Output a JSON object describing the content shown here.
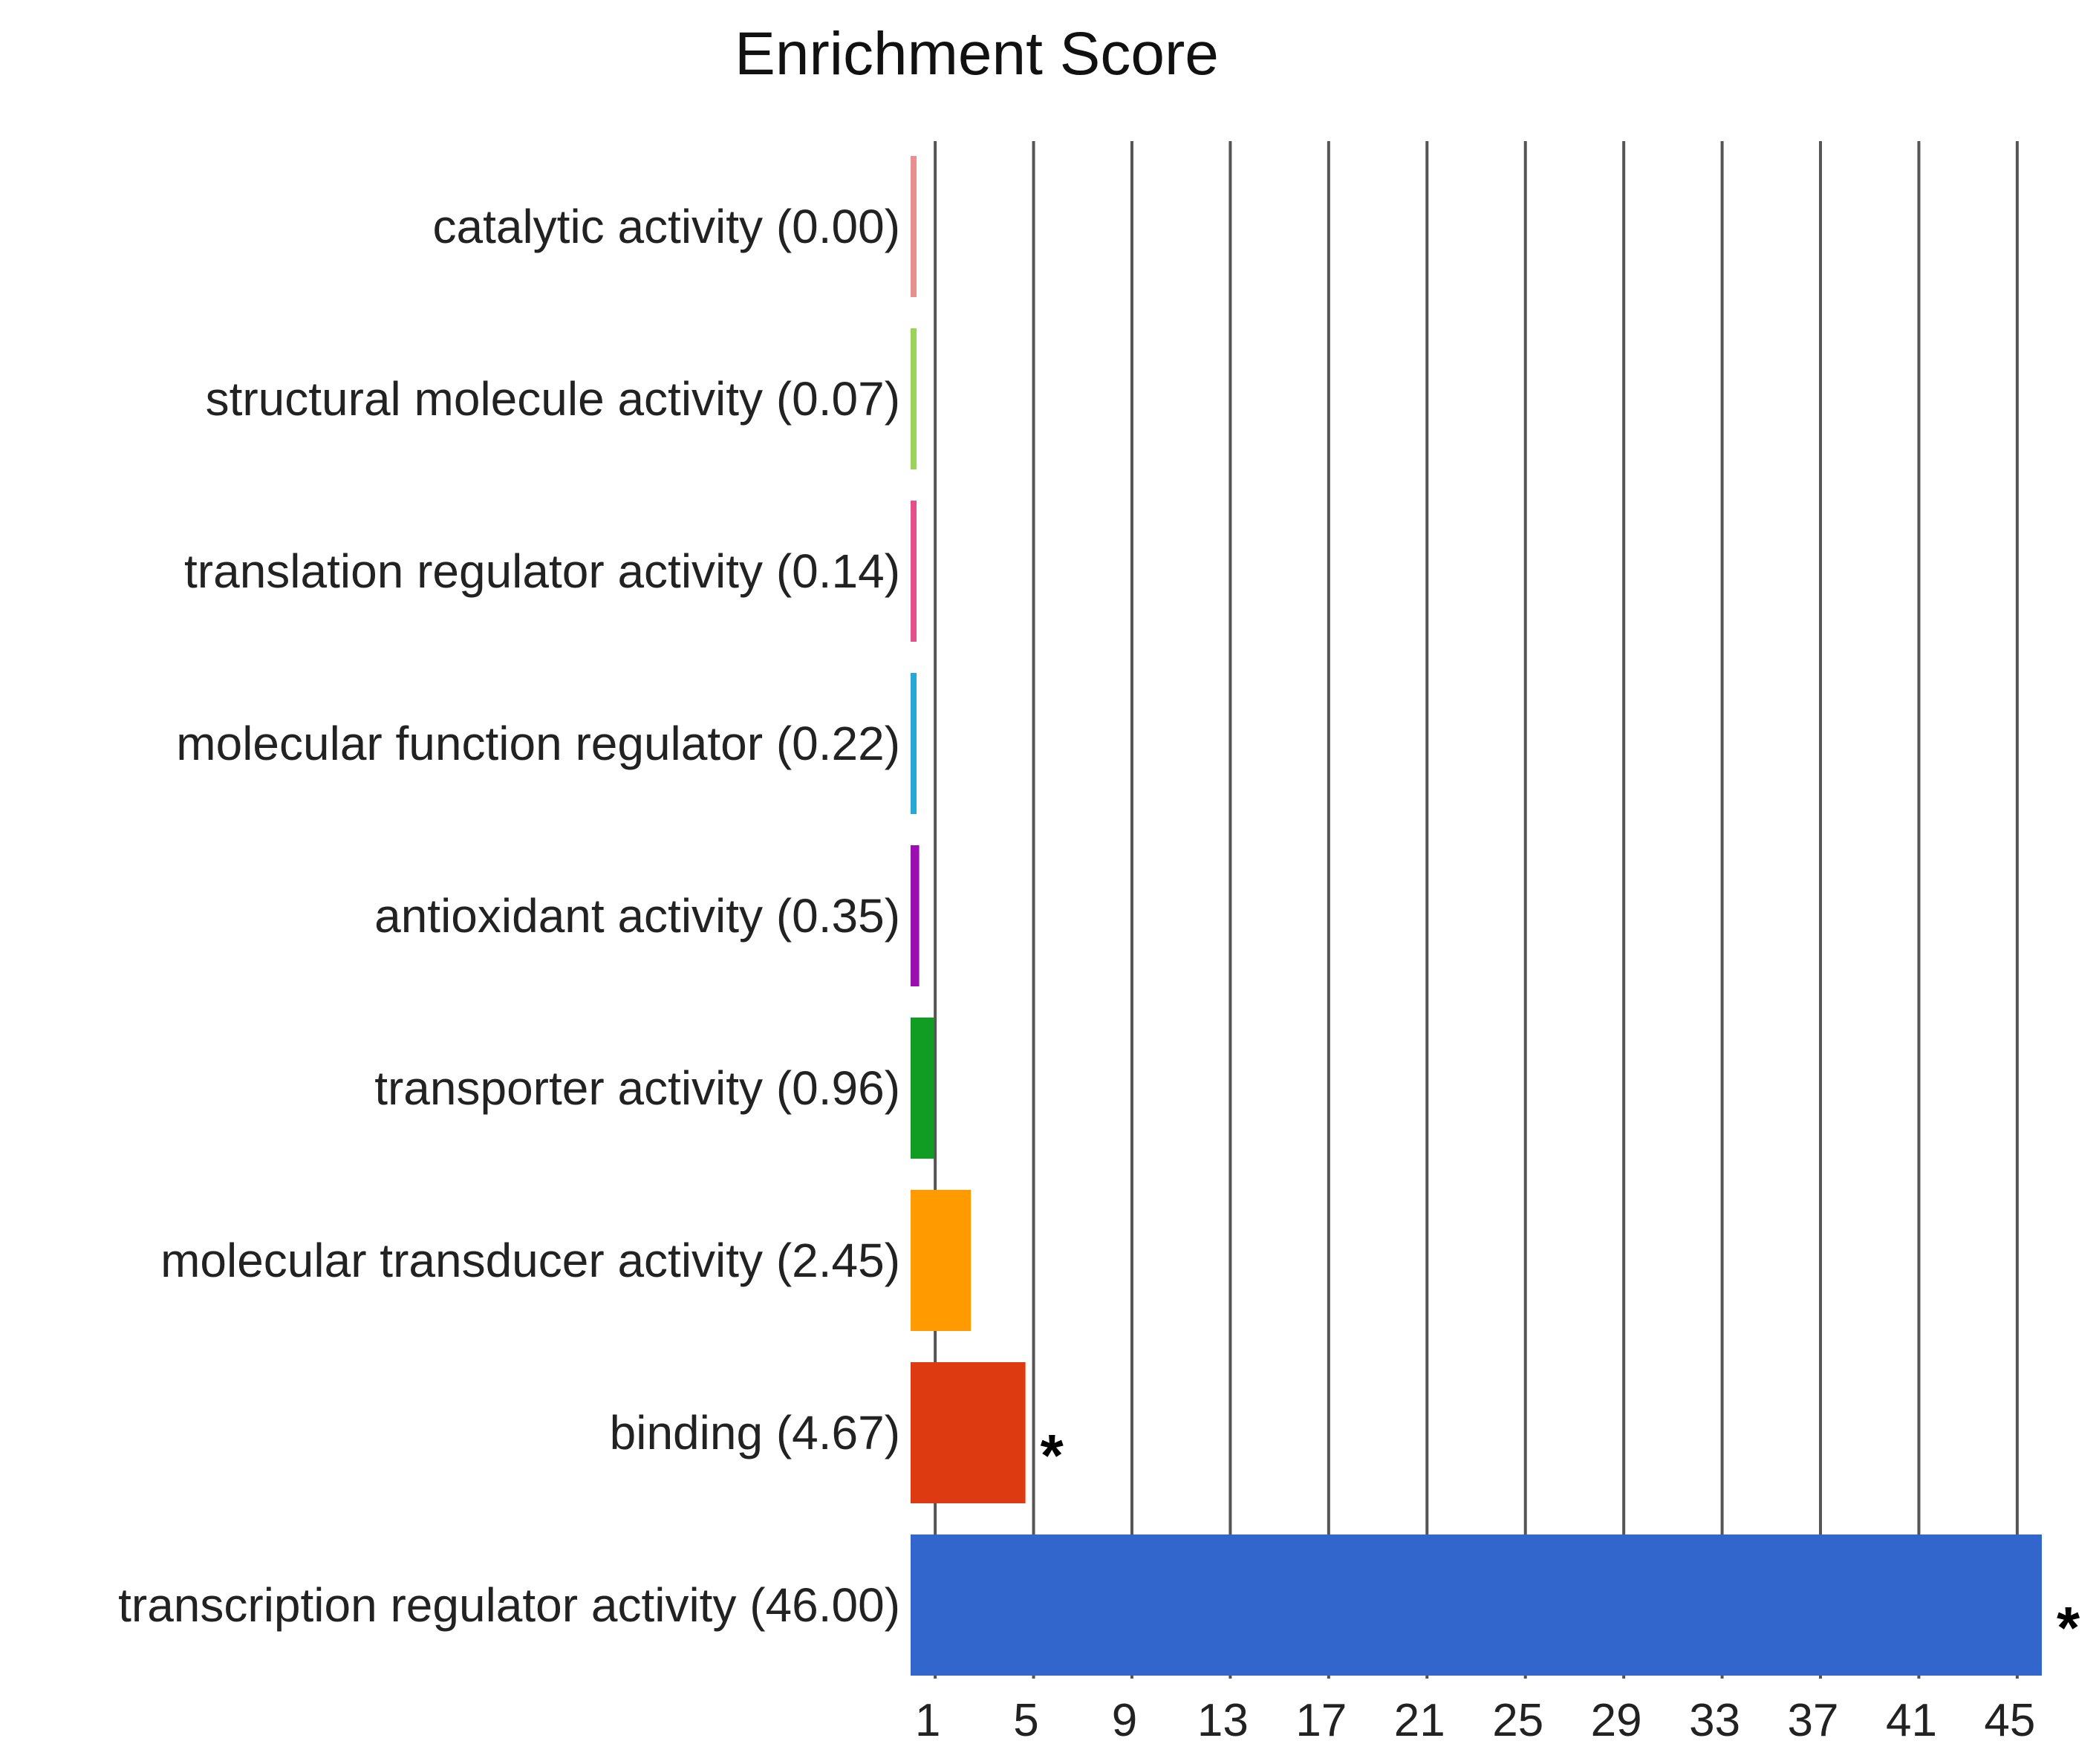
{
  "chart_data": {
    "type": "bar",
    "orientation": "horizontal",
    "title": "Enrichment Score",
    "xlabel": "",
    "ylabel": "",
    "xlim": [
      0,
      46
    ],
    "grid": true,
    "legend": "none",
    "ticks": [
      "1",
      "5",
      "9",
      "13",
      "17",
      "21",
      "25",
      "29",
      "33",
      "37",
      "41",
      "45"
    ],
    "tick_values": [
      1,
      5,
      9,
      13,
      17,
      21,
      25,
      29,
      33,
      37,
      41,
      45
    ],
    "categories": [
      "catalytic activity (0.00)",
      "structural molecule activity (0.07)",
      "translation regulator activity (0.14)",
      "molecular function regulator (0.22)",
      "antioxidant activity (0.35)",
      "transporter activity (0.96)",
      "molecular transducer activity (2.45)",
      "binding (4.67)",
      "transcription regulator activity (46.00)"
    ],
    "values": [
      0.0,
      0.07,
      0.14,
      0.22,
      0.35,
      0.96,
      2.45,
      4.67,
      46.0
    ],
    "colors": [
      "#e88f8f",
      "#9bd35b",
      "#e5508a",
      "#26a9d6",
      "#9b0fb0",
      "#119c23",
      "#ff9a00",
      "#dd3a12",
      "#3366cc"
    ],
    "significance": [
      "",
      "",
      "",
      "",
      "",
      "",
      "",
      "*",
      "*"
    ]
  }
}
